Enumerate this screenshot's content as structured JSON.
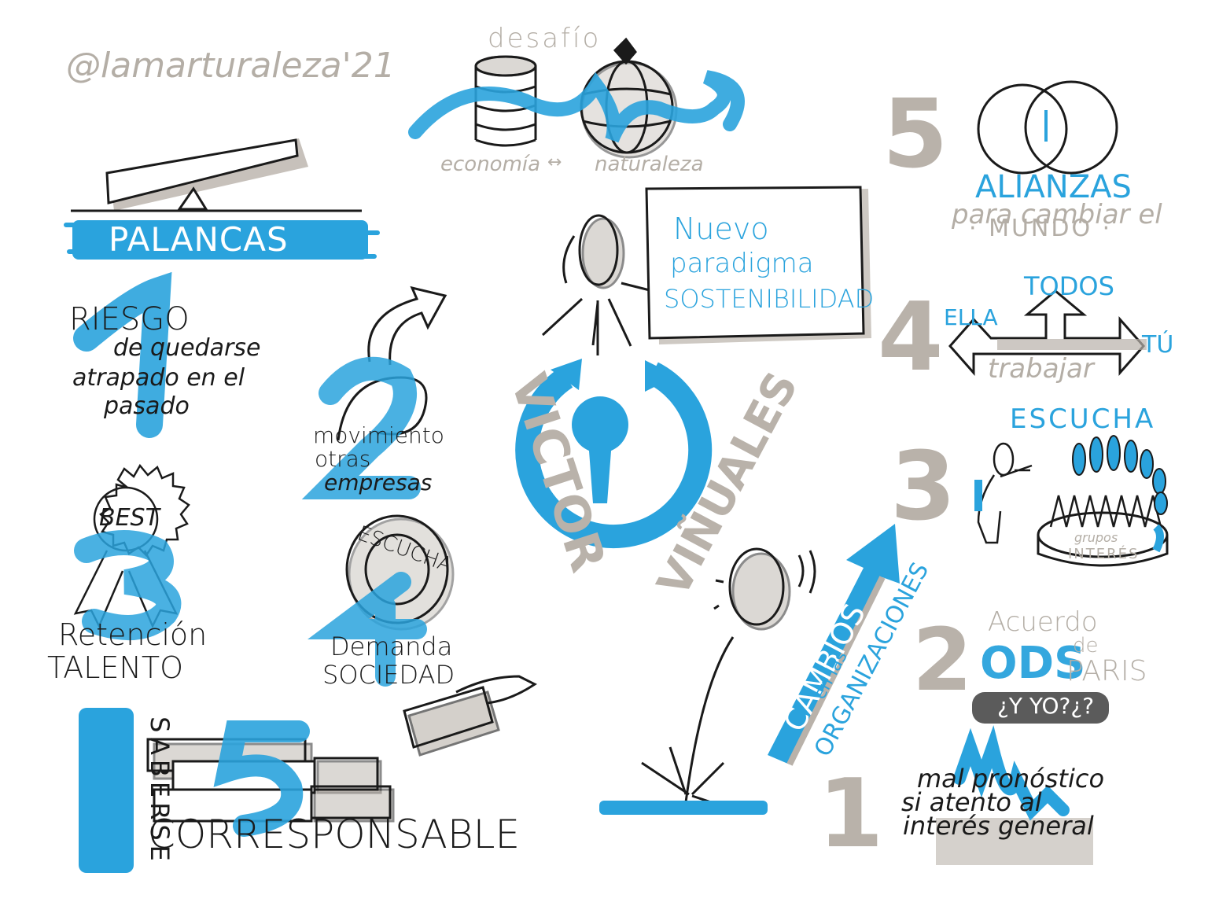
{
  "credit": "@lamarturaleza'21",
  "center": {
    "name_left": "VICTOR",
    "name_right": "VIÑUALES"
  },
  "top": {
    "title": "desafío",
    "sub_left": "economía",
    "sub_right": "naturaleza"
  },
  "board": {
    "lines": [
      "Nuevo",
      "paradigma",
      "SOSTENIBILIDAD"
    ]
  },
  "left": {
    "header": "PALANCAS",
    "items": [
      {
        "number": "1",
        "lines": [
          "RIESGO",
          "de quedarse",
          "atrapado en el",
          "pasado"
        ]
      },
      {
        "number": "2",
        "lines": [
          "movimiento",
          "otras",
          "empresas"
        ]
      },
      {
        "number": "3",
        "badge": "BEST",
        "lines": [
          "Retención",
          "TALENTO"
        ]
      },
      {
        "number": "4",
        "badge": "ESCUCHA",
        "lines": [
          "Demanda",
          "SOCIEDAD"
        ]
      },
      {
        "number": "5",
        "vertical": "SABERSE",
        "lines": [
          "CORRESPONSABLE"
        ]
      }
    ]
  },
  "middle": {
    "arrow_big": "CAMBIOS",
    "arrow_small1": "en las",
    "arrow_small2": "ORGANIZACIONES"
  },
  "right": {
    "items": [
      {
        "number": "5",
        "lines": [
          "ALIANZAS",
          "para cambiar el",
          "· MUNDO ·"
        ]
      },
      {
        "number": "4",
        "labels": {
          "top": "TODOS",
          "left": "ELLA",
          "right": "TÚ",
          "bottom": "trabajar"
        }
      },
      {
        "number": "3",
        "title": "ESCUCHA",
        "base_top": "grupos",
        "base_bottom": "INTERÉS"
      },
      {
        "number": "2",
        "main": "ODS",
        "side1": "Acuerdo",
        "side2": "de",
        "side3": "PARIS",
        "tag": "¿Y YO?¿?"
      },
      {
        "number": "1",
        "lines": [
          "mal pronóstico",
          "si atento al",
          "interés general"
        ]
      }
    ]
  },
  "colors": {
    "ink": "#1a1a1a",
    "blue": "#2aa3dd",
    "gray": "#b4aea6"
  }
}
